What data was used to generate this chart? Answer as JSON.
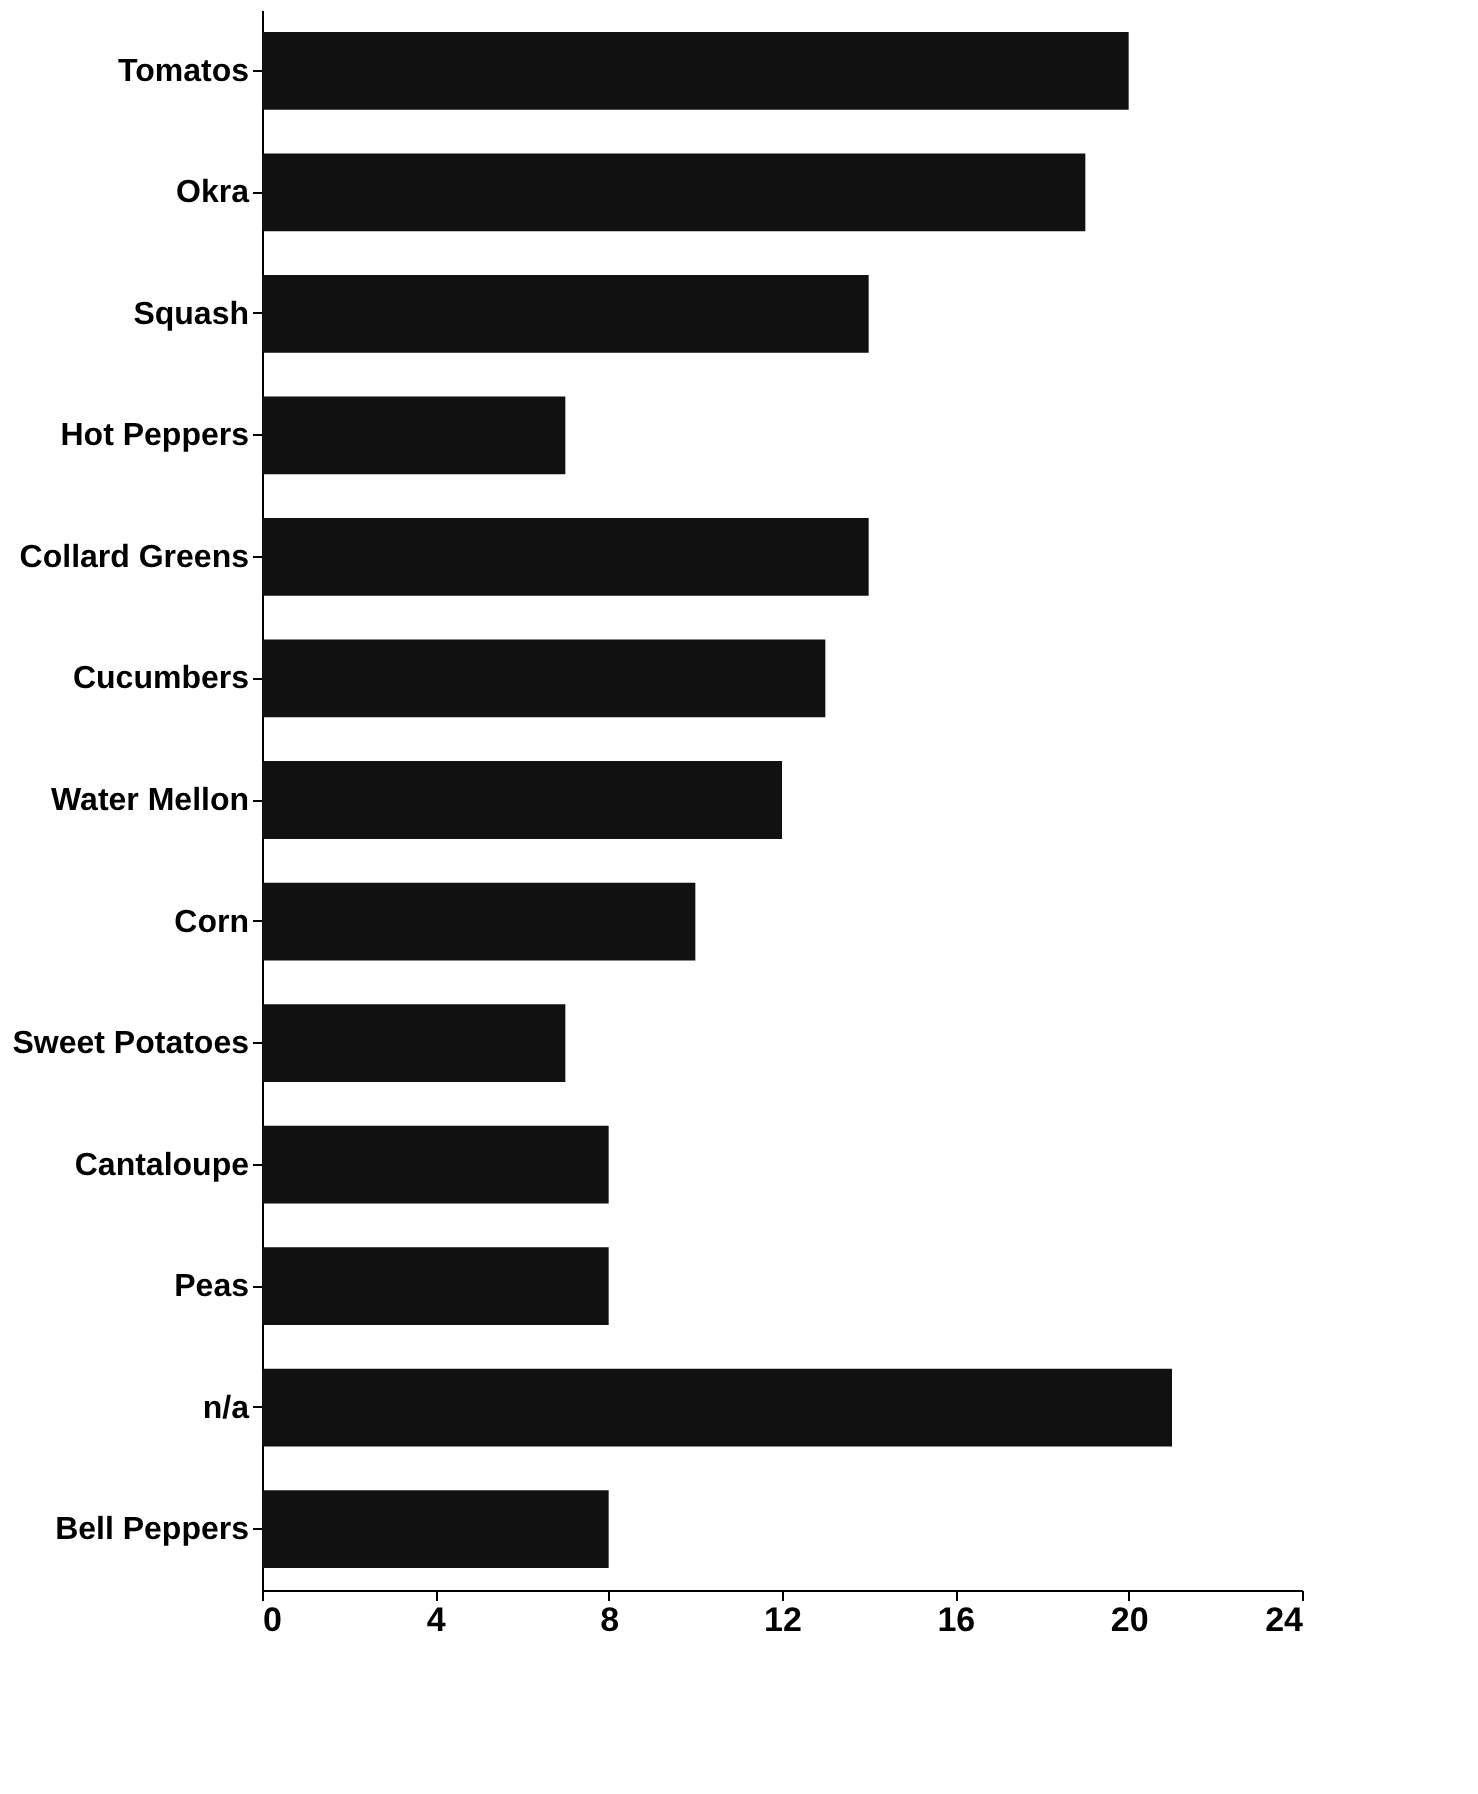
{
  "chart_data": {
    "type": "bar",
    "orientation": "horizontal",
    "categories": [
      "Tomatos",
      "Okra",
      "Squash",
      "Hot Peppers",
      "Collard Greens",
      "Cucumbers",
      "Water Mellon",
      "Corn",
      "Sweet Potatoes",
      "Cantaloupe",
      "Peas",
      "n/a",
      "Bell Peppers"
    ],
    "values": [
      20,
      19,
      14,
      7,
      14,
      13,
      12,
      10,
      7,
      8,
      8,
      21,
      8
    ],
    "color": "#111111",
    "xlim": [
      0,
      24
    ],
    "xticks": [
      0,
      4,
      8,
      12,
      16,
      20,
      24
    ],
    "grid": false
  }
}
